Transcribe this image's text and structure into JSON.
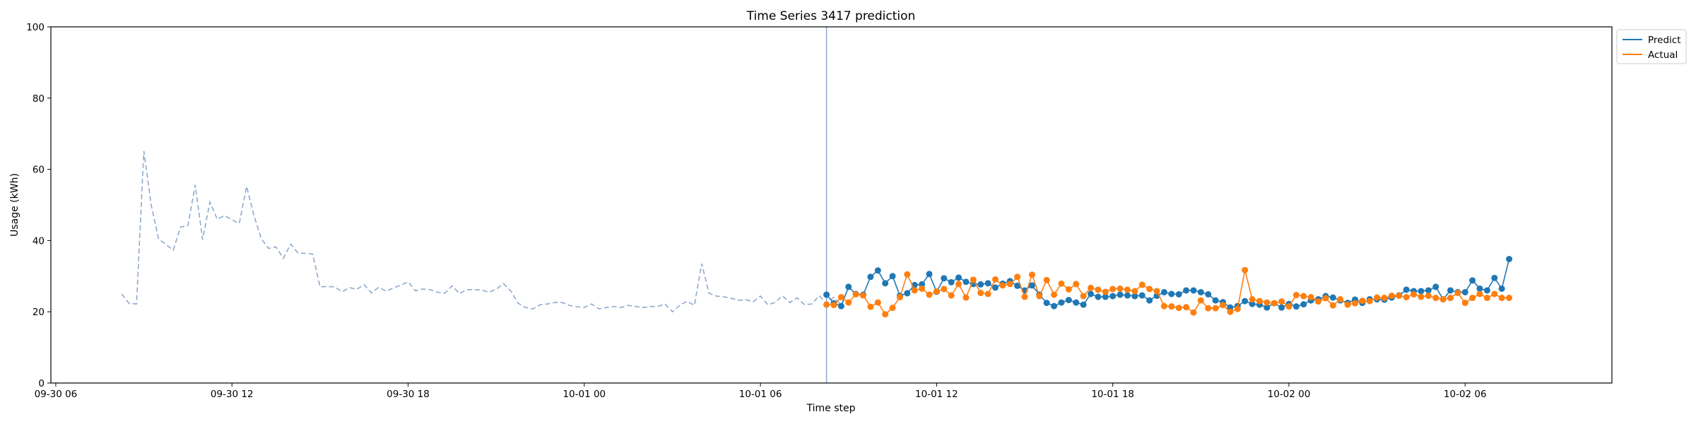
{
  "chart_data": {
    "type": "line",
    "title": "Time Series 3417 prediction",
    "xlabel": "Time step",
    "ylabel": "Usage (kWh)",
    "ylim": [
      0,
      100
    ],
    "yticks": [
      0,
      20,
      40,
      60,
      80,
      100
    ],
    "xlim": [
      "2024-09-30T05:50",
      "2024-10-02T11:00"
    ],
    "xticks": [
      {
        "t": "2024-09-30T06:00",
        "label": "09-30 06"
      },
      {
        "t": "2024-09-30T12:00",
        "label": "09-30 12"
      },
      {
        "t": "2024-09-30T18:00",
        "label": "09-30 18"
      },
      {
        "t": "2024-10-01T00:00",
        "label": "10-01 00"
      },
      {
        "t": "2024-10-01T06:00",
        "label": "10-01 06"
      },
      {
        "t": "2024-10-01T12:00",
        "label": "10-01 12"
      },
      {
        "t": "2024-10-01T18:00",
        "label": "10-01 18"
      },
      {
        "t": "2024-10-02T00:00",
        "label": "10-02 00"
      },
      {
        "t": "2024-10-02T06:00",
        "label": "10-02 06"
      }
    ],
    "step_minutes": 15,
    "grid": false,
    "legend_position": "top-right",
    "split_time": "2024-10-01T08:15",
    "history": {
      "start": "2024-09-30T08:15",
      "values": [
        25,
        22.3,
        22.2,
        65.1,
        50,
        40.5,
        38.9,
        37.3,
        43.8,
        44.2,
        55.6,
        40.3,
        50.8,
        46,
        47,
        45.8,
        44.8,
        55.2,
        47,
        40.5,
        37.8,
        38.2,
        35,
        39,
        36.5,
        36.4,
        36.2,
        27,
        27.1,
        27,
        25.6,
        26.8,
        26.3,
        27.6,
        25.3,
        26.9,
        25.8,
        26.7,
        27.5,
        28.4,
        25.9,
        26.4,
        26.2,
        25.5,
        25.2,
        27.3,
        25.1,
        26.2,
        26.2,
        26.1,
        25.5,
        26.3,
        27.9,
        25.8,
        22.4,
        21.2,
        20.8,
        22,
        22.2,
        22.6,
        22.6,
        21.8,
        21.4,
        21.2,
        22.2,
        20.8,
        21.2,
        21.5,
        21.2,
        21.8,
        21.5,
        21.2,
        21.5,
        21.5,
        22.2,
        20,
        21.8,
        23,
        21.8,
        33.5,
        25.2,
        24.4,
        24.2,
        23.8,
        23.2,
        23.4,
        22.8,
        24.4,
        22,
        22.6,
        24.5,
        22.6,
        23.9,
        22,
        22.2,
        24.5,
        22.4,
        24.1,
        21.9
      ]
    },
    "series": [
      {
        "name": "Predict",
        "color": "#1f77b4",
        "start": "2024-10-01T08:15",
        "values": [
          24.8,
          22.4,
          21.6,
          27,
          25,
          24.8,
          29.8,
          31.6,
          28,
          30,
          24.5,
          25.2,
          27.5,
          27.7,
          30.6,
          25.6,
          29.4,
          28.3,
          29.6,
          28.4,
          27.8,
          27.7,
          28,
          26.8,
          27.9,
          28.6,
          27.3,
          26,
          27.4,
          24.8,
          22.5,
          21.6,
          22.6,
          23.3,
          22.6,
          22,
          25,
          24.2,
          24.2,
          24.4,
          24.8,
          24.6,
          24.4,
          24.6,
          23.2,
          24.5,
          25.5,
          25,
          24.9,
          26,
          26,
          25.5,
          24.9,
          23.2,
          22.7,
          21.2,
          21.6,
          23,
          22.2,
          22,
          21.2,
          22.4,
          21.2,
          22.2,
          21.5,
          22.1,
          23.2,
          23.5,
          24.4,
          24,
          23.2,
          22.5,
          23.4,
          22.5,
          23.5,
          23.5,
          23.4,
          24,
          24.6,
          26.2,
          25.8,
          25.8,
          26,
          27,
          23.5,
          26,
          25.5,
          25.5,
          28.8,
          26.5,
          26,
          29.5,
          26.5,
          34.8
        ]
      },
      {
        "name": "Actual",
        "color": "#ff7f0e",
        "start": "2024-10-01T08:15",
        "values": [
          22,
          21.9,
          24.1,
          22.6,
          24.9,
          24.6,
          21.4,
          22.6,
          19.3,
          21.1,
          24.1,
          30.5,
          26,
          26.5,
          24.8,
          25.7,
          26.4,
          24.6,
          27.8,
          24,
          29,
          25.3,
          25,
          29.1,
          27.4,
          27.8,
          29.8,
          24.2,
          30.4,
          24.4,
          28.9,
          24.8,
          27.9,
          26.3,
          27.8,
          24.4,
          26.7,
          26.2,
          25.6,
          26.4,
          26.5,
          26.2,
          25.8,
          27.6,
          26.4,
          25.8,
          21.6,
          21.5,
          21.1,
          21.3,
          19.8,
          23.2,
          21,
          21,
          21.9,
          20,
          20.8,
          31.7,
          23.5,
          23,
          22.6,
          22.4,
          22.9,
          21.5,
          24.7,
          24.4,
          24.1,
          22.9,
          23.8,
          21.8,
          23.5,
          22,
          22.4,
          23.1,
          23,
          24,
          23.9,
          24.5,
          24.5,
          24.1,
          24.9,
          24.2,
          24.5,
          23.9,
          23.5,
          23.9,
          25.3,
          22.5,
          23.9,
          25,
          23.9,
          25,
          23.9,
          23.9
        ]
      }
    ]
  }
}
